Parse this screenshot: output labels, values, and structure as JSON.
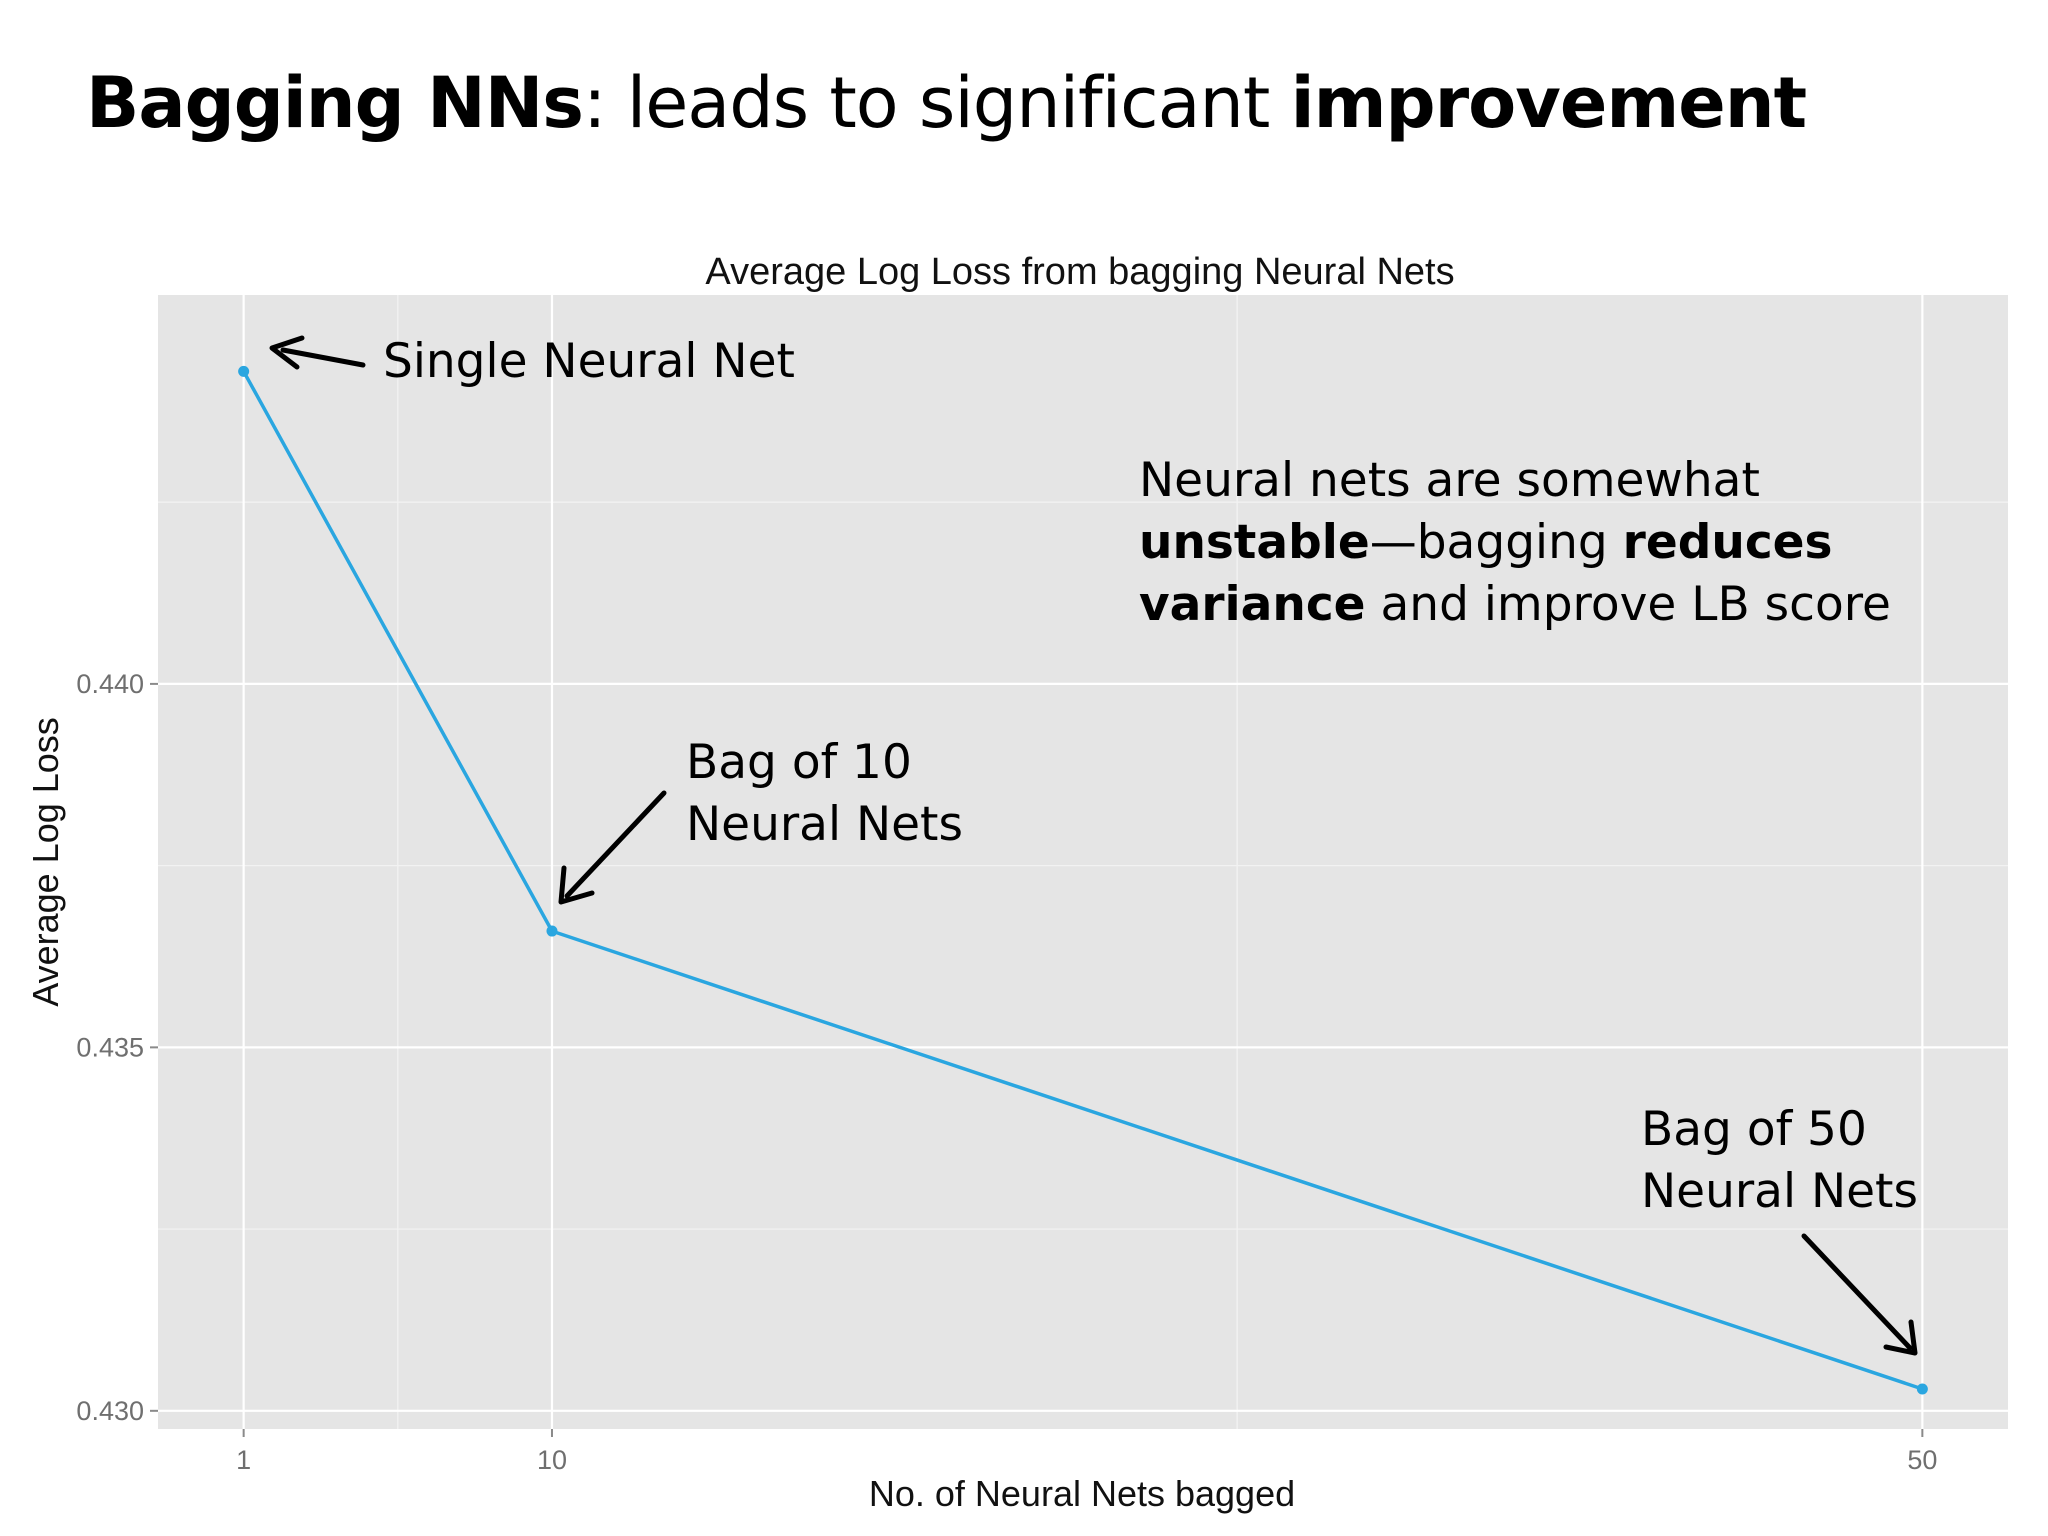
{
  "slide": {
    "heading": {
      "part1_bold": "Bagging NNs",
      "part2": ": leads to significant ",
      "part3_bold": "improvement"
    }
  },
  "chart_data": {
    "type": "line",
    "title": "Average Log Loss from bagging Neural Nets",
    "xlabel": "No. of Neural Nets bagged",
    "ylabel": "Average Log Loss",
    "x": [
      1,
      10,
      50
    ],
    "series": [
      {
        "values": [
          0.4443,
          0.4366,
          0.4303
        ],
        "color": "#2aa6e0"
      }
    ],
    "x_ticks": [
      1,
      10,
      50
    ],
    "x_tick_labels": [
      "1",
      "10",
      "50"
    ],
    "y_ticks": [
      0.43,
      0.435,
      0.44
    ],
    "y_tick_labels": [
      "0.430",
      "0.435",
      "0.440"
    ],
    "xlim": [
      -1.5,
      52.5
    ],
    "ylim": [
      0.42975,
      0.44535
    ],
    "grid": true,
    "panel_background": "#e5e5e5",
    "annotations": {
      "single": "Single Neural Net",
      "bag10_line1": "Bag of 10",
      "bag10_line2": "Neural Nets",
      "bag50_line1": "Bag of 50",
      "bag50_line2": "Neural Nets",
      "note_line1": "Neural nets are somewhat",
      "note_line2_bold": "unstable",
      "note_line2_rest": "—bagging ",
      "note_line2_bold2": "reduces",
      "note_line3_bold": "variance",
      "note_line3_rest": " and improve LB score"
    }
  }
}
